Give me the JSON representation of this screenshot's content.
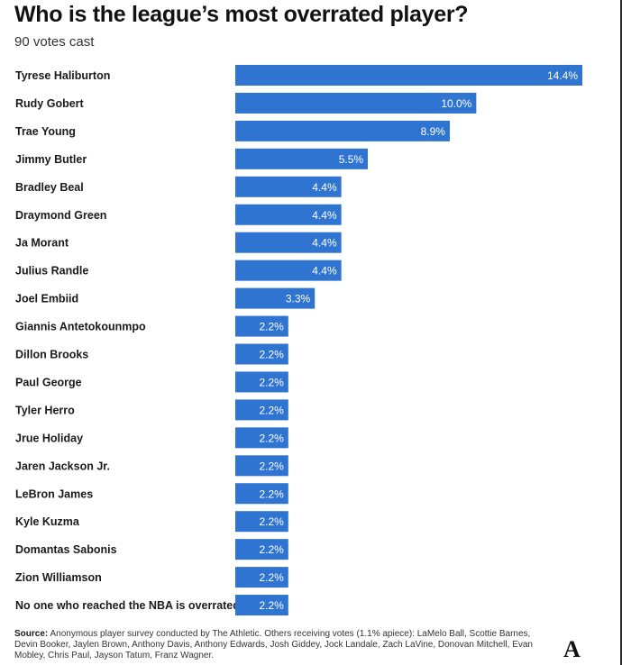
{
  "title": "Who is the league’s most overrated player?",
  "subtitle": "90 votes cast",
  "chart_data": {
    "type": "bar",
    "orientation": "horizontal",
    "categories": [
      "Tyrese Haliburton",
      "Rudy Gobert",
      "Trae Young",
      "Jimmy Butler",
      "Bradley Beal",
      "Draymond Green",
      "Ja Morant",
      "Julius Randle",
      "Joel Embiid",
      "Giannis Antetokounmpo",
      "Dillon Brooks",
      "Paul George",
      "Tyler Herro",
      "Jrue Holiday",
      "Jaren Jackson Jr.",
      "LeBron James",
      "Kyle Kuzma",
      "Domantas Sabonis",
      "Zion Williamson",
      "No one who reached the NBA is overrated"
    ],
    "values": [
      14.4,
      10.0,
      8.9,
      5.5,
      4.4,
      4.4,
      4.4,
      4.4,
      3.3,
      2.2,
      2.2,
      2.2,
      2.2,
      2.2,
      2.2,
      2.2,
      2.2,
      2.2,
      2.2,
      2.2
    ],
    "value_labels": [
      "14.4%",
      "10.0%",
      "8.9%",
      "5.5%",
      "4.4%",
      "4.4%",
      "4.4%",
      "4.4%",
      "3.3%",
      "2.2%",
      "2.2%",
      "2.2%",
      "2.2%",
      "2.2%",
      "2.2%",
      "2.2%",
      "2.2%",
      "2.2%",
      "2.2%",
      "2.2%"
    ],
    "unit": "%",
    "xlim": [
      0,
      14.4
    ],
    "grid": false,
    "bar_color": "#2f74d0"
  },
  "source": {
    "label": "Source:",
    "text": "Anonymous player survey conducted by The Athletic. Others receiving votes (1.1% apiece): LaMelo Ball, Scottie Barnes, Devin Booker, Jaylen Brown, Anthony Davis, Anthony Edwards, Josh Giddey, Jock Landale, Zach LaVine, Donovan Mitchell, Evan Mobley, Chris Paul, Jayson Tatum, Franz Wagner."
  },
  "logo": {
    "text": "A",
    "icon": "the-athletic-logo-icon"
  }
}
